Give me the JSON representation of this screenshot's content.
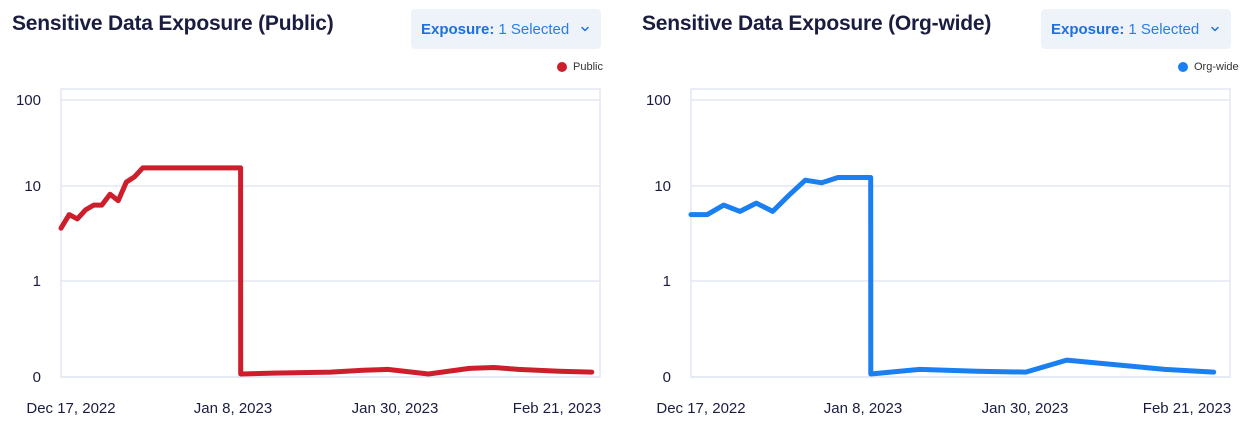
{
  "chart_data": [
    {
      "type": "line",
      "title": "Sensitive Data Exposure (Public)",
      "dropdown": {
        "label": "Exposure:",
        "value": "1 Selected"
      },
      "legend": "Public",
      "color": "#cc1f2b",
      "yscale": "log",
      "yticks": [
        "100",
        "10",
        "1",
        "0"
      ],
      "xticks": [
        "Dec 17, 2022",
        "Jan 8, 2023",
        "Jan 30, 2023",
        "Feb 21, 2023"
      ],
      "xlim": [
        0,
        66
      ],
      "x": [
        0,
        1,
        2,
        3,
        4,
        5,
        6,
        7,
        8,
        9,
        10,
        11,
        21.99,
        22.01,
        26,
        33,
        37,
        40,
        45,
        50,
        53,
        56,
        61,
        65
      ],
      "values": [
        3.6,
        5,
        4.5,
        5.6,
        6.3,
        6.3,
        8.2,
        7,
        11,
        12.5,
        15.5,
        15.5,
        15.5,
        0,
        0.01,
        0.02,
        0.04,
        0.05,
        0.0,
        0.06,
        0.07,
        0.05,
        0.03,
        0.02
      ]
    },
    {
      "type": "line",
      "title": "Sensitive Data Exposure (Org-wide)",
      "dropdown": {
        "label": "Exposure:",
        "value": "1 Selected"
      },
      "legend": "Org-wide",
      "color": "#1a7ff0",
      "yscale": "log",
      "yticks": [
        "100",
        "10",
        "1",
        "0"
      ],
      "xticks": [
        "Dec 17, 2022",
        "Jan 8, 2023",
        "Jan 30, 2023",
        "Feb 21, 2023"
      ],
      "xlim": [
        0,
        66
      ],
      "x": [
        0,
        2,
        4,
        6,
        8,
        10,
        12,
        14,
        16,
        18,
        20,
        22,
        22.02,
        28,
        35,
        41,
        46,
        52,
        58,
        64
      ],
      "values": [
        5,
        5,
        6.3,
        5.4,
        6.6,
        5.4,
        8,
        11.5,
        10.8,
        12.3,
        12.3,
        12.3,
        0,
        0.05,
        0.03,
        0.02,
        0.15,
        0.1,
        0.05,
        0.02
      ]
    }
  ]
}
